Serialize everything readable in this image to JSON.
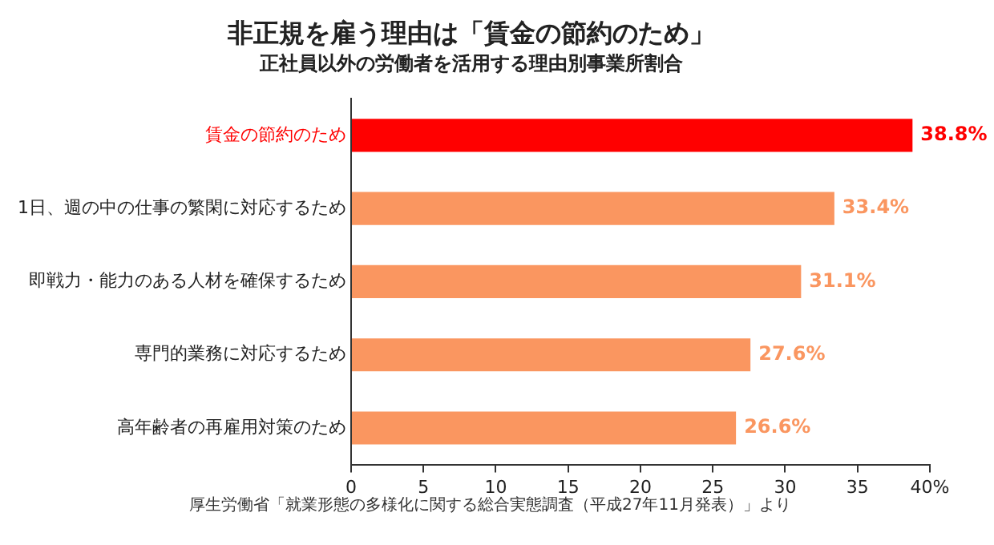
{
  "chart_data": {
    "type": "bar",
    "orientation": "horizontal",
    "title": "非正規を雇う理由は「賃金の節約のため」",
    "subtitle": "正社員以外の労働者を活用する理由別事業所割合",
    "categories": [
      "賃金の節約のため",
      "1日、週の中の仕事の繁閑に対応するため",
      "即戦力・能力のある人材を確保するため",
      "専門的業務に対応するため",
      "高年齢者の再雇用対策のため"
    ],
    "values": [
      38.8,
      33.4,
      31.1,
      27.6,
      26.6
    ],
    "colors": [
      "#ff0000",
      "#fa9660",
      "#fa9660",
      "#fa9660",
      "#fa9660"
    ],
    "value_labels": [
      "38.8%",
      "33.4%",
      "31.1%",
      "27.6%",
      "26.6%"
    ],
    "xlim": [
      0,
      40
    ],
    "xticks": [
      0,
      5,
      10,
      15,
      20,
      25,
      30,
      35,
      {
        "value": 40,
        "label": "40%"
      }
    ],
    "grid": false,
    "legend": false,
    "annotations": [
      "厚生労働省「就業形態の多様化に関する総合実態調査（平成27年11月発表）」より"
    ]
  }
}
